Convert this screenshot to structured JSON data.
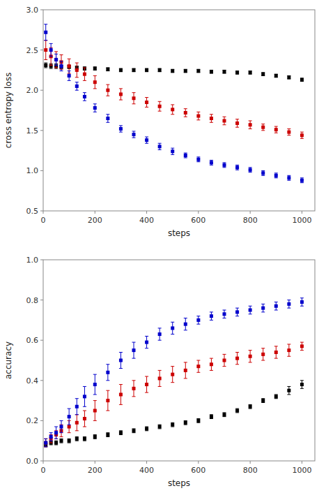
{
  "chart_data": [
    {
      "type": "scatter",
      "x": [
        10,
        30,
        50,
        70,
        100,
        130,
        160,
        200,
        250,
        300,
        350,
        400,
        450,
        500,
        550,
        600,
        650,
        700,
        750,
        800,
        850,
        900,
        950,
        1000
      ],
      "series": [
        {
          "color": "#000000",
          "marker": "square",
          "values": [
            2.31,
            2.3,
            2.3,
            2.29,
            2.29,
            2.28,
            2.27,
            2.27,
            2.26,
            2.25,
            2.25,
            2.25,
            2.25,
            2.24,
            2.24,
            2.24,
            2.23,
            2.23,
            2.22,
            2.22,
            2.2,
            2.18,
            2.16,
            2.13
          ],
          "errors": [
            0.03,
            0.03,
            0.03,
            0.02,
            0.02,
            0.02,
            0.02,
            0.02,
            0.02,
            0.02,
            0.02,
            0.02,
            0.02,
            0.02,
            0.02,
            0.02,
            0.02,
            0.02,
            0.02,
            0.02,
            0.02,
            0.02,
            0.02,
            0.02
          ]
        },
        {
          "color": "#cc0000",
          "marker": "square",
          "values": [
            2.5,
            2.42,
            2.38,
            2.35,
            2.3,
            2.25,
            2.2,
            2.1,
            2.0,
            1.95,
            1.9,
            1.85,
            1.8,
            1.76,
            1.72,
            1.68,
            1.65,
            1.62,
            1.59,
            1.57,
            1.54,
            1.51,
            1.48,
            1.44
          ],
          "errors": [
            0.12,
            0.11,
            0.1,
            0.09,
            0.09,
            0.09,
            0.08,
            0.08,
            0.07,
            0.07,
            0.07,
            0.06,
            0.06,
            0.06,
            0.05,
            0.05,
            0.05,
            0.05,
            0.05,
            0.05,
            0.04,
            0.04,
            0.04,
            0.04
          ]
        },
        {
          "color": "#0000cc",
          "marker": "square",
          "values": [
            2.72,
            2.5,
            2.38,
            2.3,
            2.18,
            2.05,
            1.92,
            1.78,
            1.65,
            1.52,
            1.45,
            1.38,
            1.3,
            1.24,
            1.19,
            1.14,
            1.1,
            1.07,
            1.04,
            1.01,
            0.97,
            0.94,
            0.91,
            0.88
          ],
          "errors": [
            0.1,
            0.08,
            0.07,
            0.06,
            0.06,
            0.05,
            0.05,
            0.05,
            0.05,
            0.04,
            0.04,
            0.04,
            0.04,
            0.04,
            0.03,
            0.03,
            0.03,
            0.03,
            0.03,
            0.03,
            0.03,
            0.03,
            0.03,
            0.03
          ]
        }
      ],
      "xlim": [
        0,
        1050
      ],
      "xticks": [
        0,
        200,
        400,
        600,
        800,
        1000
      ],
      "ylim": [
        0.5,
        3.0
      ],
      "yticks": [
        0.5,
        {
          "value": 1.0,
          "label": "1.0"
        },
        1.5,
        {
          "value": 2.0,
          "label": "2.0"
        },
        2.5,
        {
          "value": 3.0,
          "label": "3.0"
        }
      ],
      "x_label": "steps",
      "y_label": "cross entropy loss",
      "grid": false
    },
    {
      "type": "scatter",
      "x": [
        10,
        30,
        50,
        70,
        100,
        130,
        160,
        200,
        250,
        300,
        350,
        400,
        450,
        500,
        550,
        600,
        650,
        700,
        750,
        800,
        850,
        900,
        950,
        1000
      ],
      "series": [
        {
          "color": "#000000",
          "marker": "square",
          "values": [
            0.08,
            0.09,
            0.09,
            0.1,
            0.1,
            0.11,
            0.11,
            0.12,
            0.13,
            0.14,
            0.15,
            0.16,
            0.17,
            0.18,
            0.19,
            0.2,
            0.22,
            0.23,
            0.25,
            0.27,
            0.3,
            0.32,
            0.35,
            0.38
          ],
          "errors": [
            0.01,
            0.01,
            0.01,
            0.01,
            0.01,
            0.01,
            0.01,
            0.01,
            0.01,
            0.01,
            0.01,
            0.01,
            0.01,
            0.01,
            0.01,
            0.01,
            0.01,
            0.01,
            0.01,
            0.01,
            0.01,
            0.01,
            0.02,
            0.02
          ]
        },
        {
          "color": "#cc0000",
          "marker": "square",
          "values": [
            0.09,
            0.11,
            0.13,
            0.15,
            0.17,
            0.19,
            0.21,
            0.25,
            0.3,
            0.33,
            0.36,
            0.38,
            0.41,
            0.43,
            0.45,
            0.47,
            0.48,
            0.5,
            0.51,
            0.52,
            0.53,
            0.54,
            0.55,
            0.57
          ],
          "errors": [
            0.02,
            0.02,
            0.02,
            0.03,
            0.03,
            0.04,
            0.04,
            0.05,
            0.05,
            0.05,
            0.04,
            0.04,
            0.04,
            0.04,
            0.04,
            0.03,
            0.03,
            0.03,
            0.03,
            0.03,
            0.03,
            0.03,
            0.03,
            0.02
          ]
        },
        {
          "color": "#0000cc",
          "marker": "square",
          "values": [
            0.09,
            0.12,
            0.14,
            0.17,
            0.22,
            0.27,
            0.32,
            0.38,
            0.44,
            0.5,
            0.55,
            0.59,
            0.63,
            0.66,
            0.68,
            0.7,
            0.72,
            0.73,
            0.74,
            0.75,
            0.76,
            0.77,
            0.78,
            0.79
          ],
          "errors": [
            0.02,
            0.02,
            0.03,
            0.03,
            0.04,
            0.04,
            0.05,
            0.05,
            0.04,
            0.04,
            0.04,
            0.03,
            0.03,
            0.03,
            0.03,
            0.02,
            0.02,
            0.02,
            0.02,
            0.02,
            0.02,
            0.02,
            0.02,
            0.02
          ]
        }
      ],
      "xlim": [
        0,
        1050
      ],
      "xticks": [
        0,
        200,
        400,
        600,
        800,
        1000
      ],
      "ylim": [
        0.0,
        1.0
      ],
      "yticks": [
        {
          "value": 0.0,
          "label": "0.0"
        },
        0.2,
        0.4,
        0.6,
        0.8,
        {
          "value": 1.0,
          "label": "1.0"
        }
      ],
      "x_label": "steps",
      "y_label": "accuracy",
      "grid": false
    }
  ]
}
